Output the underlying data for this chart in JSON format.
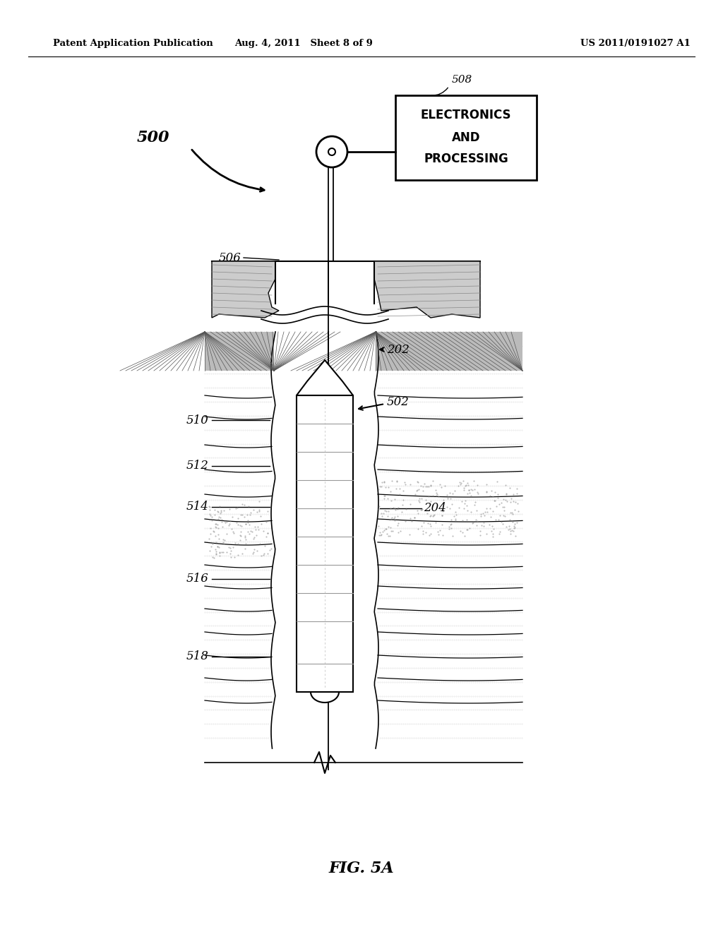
{
  "title_left": "Patent Application Publication",
  "title_mid": "Aug. 4, 2011   Sheet 8 of 9",
  "title_right": "US 2011/0191027 A1",
  "fig_label": "FIG. 5A",
  "background_color": "#ffffff",
  "line_color": "#000000"
}
